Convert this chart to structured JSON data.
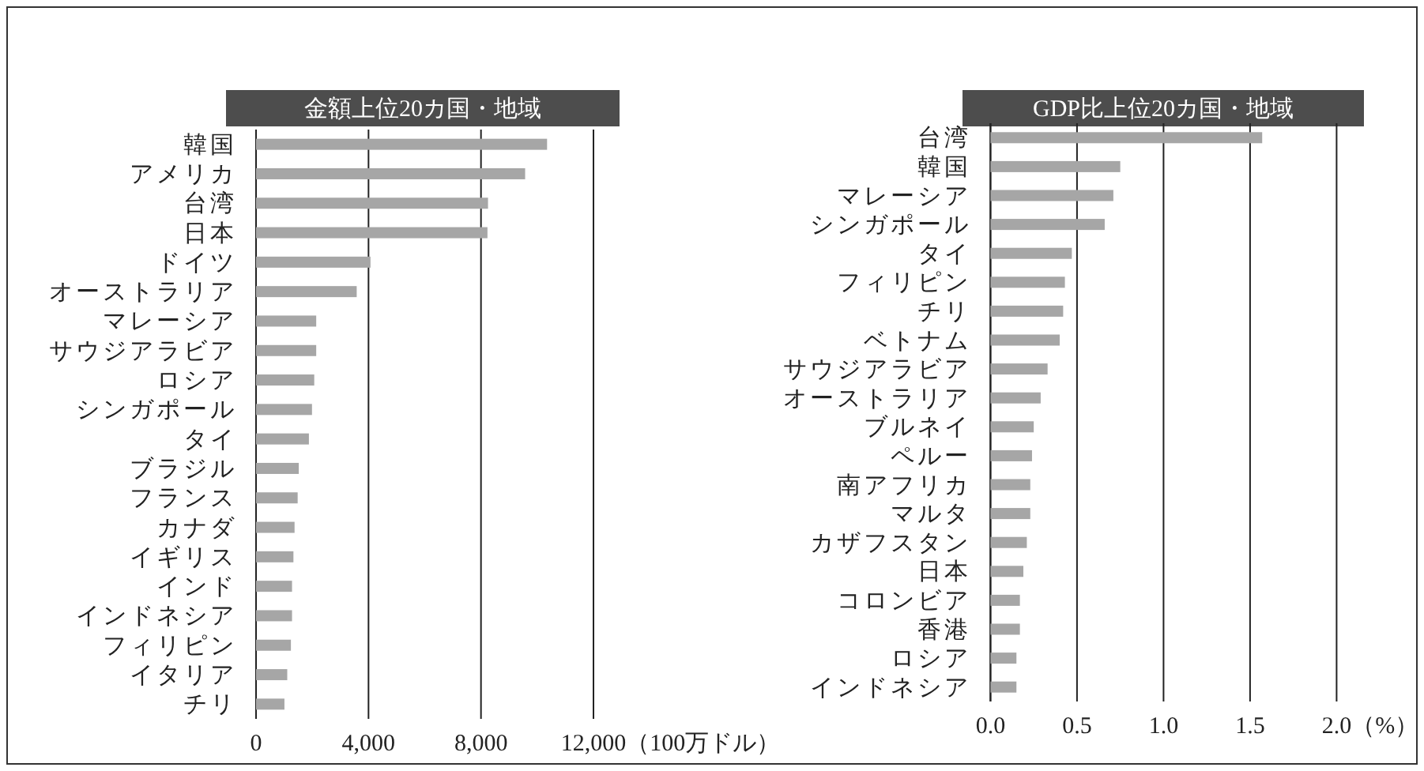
{
  "chart_data": [
    {
      "type": "bar",
      "orientation": "horizontal",
      "title": "金額上位20カ国・地域",
      "xlabel": "（100万ドル）",
      "categories": [
        "韓国",
        "アメリカ",
        "台湾",
        "日本",
        "ドイツ",
        "オーストラリア",
        "マレーシア",
        "サウジアラビア",
        "ロシア",
        "シンガポール",
        "タイ",
        "ブラジル",
        "フランス",
        "カナダ",
        "イギリス",
        "インド",
        "インドネシア",
        "フィリピン",
        "イタリア",
        "チリ"
      ],
      "values": [
        10350,
        9570,
        8250,
        8230,
        4070,
        3580,
        2140,
        2140,
        2070,
        1990,
        1880,
        1520,
        1480,
        1370,
        1330,
        1280,
        1280,
        1240,
        1110,
        1010
      ],
      "color": "#a6a6a6",
      "xlim": [
        0,
        12000
      ],
      "xticks": [
        {
          "value": 0,
          "label": "0"
        },
        {
          "value": 4000,
          "label": "4,000"
        },
        {
          "value": 8000,
          "label": "8,000"
        },
        {
          "value": 12000,
          "label": "12,000"
        }
      ],
      "grid": "x"
    },
    {
      "type": "bar",
      "orientation": "horizontal",
      "title": "GDP比上位20カ国・地域",
      "xlabel": "（%）",
      "categories": [
        "台湾",
        "韓国",
        "マレーシア",
        "シンガポール",
        "タイ",
        "フィリピン",
        "チリ",
        "ベトナム",
        "サウジアラビア",
        "オーストラリア",
        "ブルネイ",
        "ペルー",
        "南アフリカ",
        "マルタ",
        "カザフスタン",
        "日本",
        "コロンビア",
        "香港",
        "ロシア",
        "インドネシア"
      ],
      "values": [
        1.57,
        0.75,
        0.71,
        0.66,
        0.47,
        0.43,
        0.42,
        0.4,
        0.33,
        0.29,
        0.25,
        0.24,
        0.23,
        0.23,
        0.21,
        0.19,
        0.17,
        0.17,
        0.15,
        0.15
      ],
      "color": "#a6a6a6",
      "xlim": [
        0,
        2.0
      ],
      "xticks": [
        {
          "value": 0,
          "label": "0.0"
        },
        {
          "value": 0.5,
          "label": "0.5"
        },
        {
          "value": 1.0,
          "label": "1.0"
        },
        {
          "value": 1.5,
          "label": "1.5"
        },
        {
          "value": 2.0,
          "label": "2.0"
        }
      ],
      "grid": "x"
    }
  ]
}
